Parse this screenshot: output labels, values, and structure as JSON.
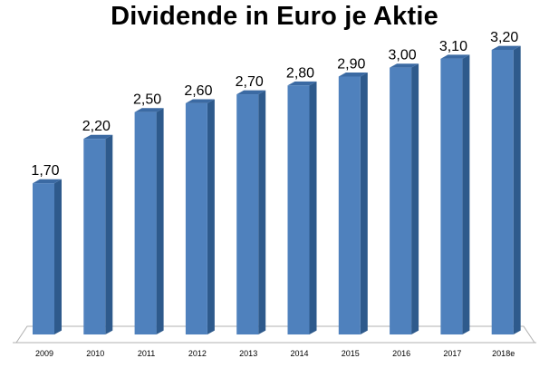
{
  "chart_data": {
    "type": "bar",
    "title": "Dividende in Euro je Aktie",
    "categories": [
      "2009",
      "2010",
      "2011",
      "2012",
      "2013",
      "2014",
      "2015",
      "2016",
      "2017",
      "2018e"
    ],
    "values": [
      1.7,
      2.2,
      2.5,
      2.6,
      2.7,
      2.8,
      2.9,
      3.0,
      3.1,
      3.2
    ],
    "data_labels": [
      "1,70",
      "2,20",
      "2,50",
      "2,60",
      "2,70",
      "2,80",
      "2,90",
      "3,00",
      "3,10",
      "3,20"
    ],
    "xlabel": "",
    "ylabel": "",
    "ylim": [
      0,
      3.2
    ],
    "grid": false,
    "legend": "none",
    "colors": {
      "bar_front": "#4f81bd",
      "bar_side": "#2e5a8c",
      "bar_top": "#3b6aa3",
      "floor": "#ffffff",
      "floor_stroke": "#b0b0b0"
    }
  }
}
